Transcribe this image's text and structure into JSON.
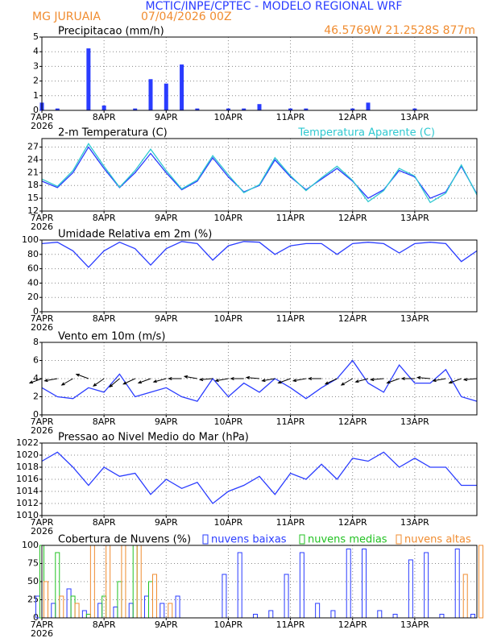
{
  "header": {
    "title": "MCTIC/INPE/CPTEC - MODELO REGIONAL WRF",
    "location": "MG JURUAIA",
    "run": "07/04/2026 00Z",
    "coords": "46.5769W 21.2528S 877m"
  },
  "chart_data": [
    {
      "type": "bar",
      "title": "Precipitacao (mm/h)",
      "color": "#2a3cff",
      "x": [
        0,
        6,
        12,
        18,
        24,
        30,
        36,
        42,
        48,
        54,
        60,
        66,
        72,
        78,
        84,
        90,
        96,
        102,
        108,
        114,
        120,
        126,
        132,
        138,
        144,
        150,
        156,
        162,
        168
      ],
      "values": [
        0.5,
        0.1,
        0,
        4.2,
        0.3,
        0,
        0.1,
        2.1,
        1.8,
        3.1,
        0.1,
        0,
        0.1,
        0.1,
        0.4,
        0,
        0.1,
        0.1,
        0,
        0,
        0.1,
        0.5,
        0,
        0,
        0.1,
        0,
        0,
        0,
        0
      ],
      "xlim": [
        0,
        168
      ],
      "ylim": [
        0,
        5
      ],
      "yticks": [
        0,
        1,
        2,
        3,
        4,
        5
      ],
      "xticks": [
        {
          "value": 0,
          "label": "7APR"
        },
        {
          "value": 24,
          "label": "8APR"
        },
        {
          "value": 48,
          "label": "9APR"
        },
        {
          "value": 72,
          "label": "10APR"
        },
        {
          "value": 96,
          "label": "11APR"
        },
        {
          "value": 120,
          "label": "12APR"
        },
        {
          "value": 144,
          "label": "13APR"
        }
      ],
      "x_year": "2026",
      "grid": true
    },
    {
      "type": "line",
      "title": "2-m Temperatura (C)",
      "x": [
        0,
        6,
        12,
        18,
        24,
        30,
        36,
        42,
        48,
        54,
        60,
        66,
        72,
        78,
        84,
        90,
        96,
        102,
        108,
        114,
        120,
        126,
        132,
        138,
        144,
        150,
        156,
        162,
        168
      ],
      "series": [
        {
          "color": "#2a3cff",
          "values": [
            19,
            17.5,
            21,
            27,
            22,
            17.5,
            21,
            25.5,
            21,
            17,
            19,
            24.5,
            20,
            16.5,
            18,
            24,
            20,
            17,
            19.5,
            22,
            19,
            15,
            17,
            21.5,
            20,
            15,
            16.5,
            22.5,
            16
          ]
        },
        {
          "name": "Temperatura Aparente (C)",
          "color": "#2ec8d0",
          "values": [
            19.5,
            17.8,
            21.5,
            27.8,
            22.5,
            17.6,
            21.5,
            26.5,
            21.5,
            17.2,
            19.3,
            25,
            20.5,
            16.3,
            18.2,
            24.5,
            20.3,
            16.8,
            19.8,
            22.5,
            19.2,
            14.2,
            16.8,
            22,
            20.2,
            14,
            16.2,
            22.8,
            15.8
          ]
        }
      ],
      "xlim": [
        0,
        168
      ],
      "ylim": [
        12,
        29
      ],
      "yticks": [
        12,
        15,
        18,
        21,
        24,
        27
      ],
      "xticks": [
        {
          "value": 0,
          "label": "7APR"
        },
        {
          "value": 24,
          "label": "8APR"
        },
        {
          "value": 48,
          "label": "9APR"
        },
        {
          "value": 72,
          "label": "10APR"
        },
        {
          "value": 96,
          "label": "11APR"
        },
        {
          "value": 120,
          "label": "12APR"
        },
        {
          "value": 144,
          "label": "13APR"
        }
      ],
      "x_year": "2026",
      "grid": true
    },
    {
      "type": "line",
      "title": "Umidade Relativa em 2m (%)",
      "x": [
        0,
        6,
        12,
        18,
        24,
        30,
        36,
        42,
        48,
        54,
        60,
        66,
        72,
        78,
        84,
        90,
        96,
        102,
        108,
        114,
        120,
        126,
        132,
        138,
        144,
        150,
        156,
        162,
        168
      ],
      "series": [
        {
          "color": "#2a3cff",
          "values": [
            95,
            97,
            85,
            62,
            85,
            97,
            88,
            65,
            88,
            98,
            95,
            72,
            92,
            98,
            97,
            80,
            92,
            95,
            95,
            80,
            95,
            97,
            95,
            82,
            95,
            97,
            95,
            70,
            85
          ]
        }
      ],
      "xlim": [
        0,
        168
      ],
      "ylim": [
        0,
        100
      ],
      "yticks": [
        0,
        20,
        40,
        60,
        80,
        100
      ],
      "xticks": [
        {
          "value": 0,
          "label": "7APR"
        },
        {
          "value": 24,
          "label": "8APR"
        },
        {
          "value": 48,
          "label": "9APR"
        },
        {
          "value": 72,
          "label": "10APR"
        },
        {
          "value": 96,
          "label": "11APR"
        },
        {
          "value": 120,
          "label": "12APR"
        },
        {
          "value": 144,
          "label": "13APR"
        }
      ],
      "x_year": "2026",
      "grid": true
    },
    {
      "type": "line",
      "title": "Vento em 10m (m/s)",
      "x": [
        0,
        6,
        12,
        18,
        24,
        30,
        36,
        42,
        48,
        54,
        60,
        66,
        72,
        78,
        84,
        90,
        96,
        102,
        108,
        114,
        120,
        126,
        132,
        138,
        144,
        150,
        156,
        162,
        168
      ],
      "series": [
        {
          "color": "#2a3cff",
          "values": [
            3,
            2,
            1.8,
            3,
            2.5,
            4.5,
            2,
            2.5,
            3,
            2,
            1.5,
            4,
            2,
            3.5,
            2.5,
            4,
            3,
            1.8,
            3,
            4,
            6,
            3.5,
            2.5,
            5.5,
            3.5,
            3.5,
            5,
            2,
            1.5
          ]
        }
      ],
      "wind_direction": [
        200,
        190,
        210,
        160,
        215,
        220,
        205,
        200,
        195,
        180,
        170,
        185,
        190,
        180,
        175,
        190,
        200,
        190,
        180,
        205,
        210,
        195,
        185,
        200,
        180,
        175,
        190,
        200,
        185
      ],
      "xlim": [
        0,
        168
      ],
      "ylim": [
        0,
        8
      ],
      "yticks": [
        0,
        2,
        4,
        6,
        8
      ],
      "xticks": [
        {
          "value": 0,
          "label": "7APR"
        },
        {
          "value": 24,
          "label": "8APR"
        },
        {
          "value": 48,
          "label": "9APR"
        },
        {
          "value": 72,
          "label": "10APR"
        },
        {
          "value": 96,
          "label": "11APR"
        },
        {
          "value": 120,
          "label": "12APR"
        },
        {
          "value": 144,
          "label": "13APR"
        }
      ],
      "x_year": "2026",
      "grid": true
    },
    {
      "type": "line",
      "title": "Pressao ao Nivel Medio do Mar (hPa)",
      "x": [
        0,
        6,
        12,
        18,
        24,
        30,
        36,
        42,
        48,
        54,
        60,
        66,
        72,
        78,
        84,
        90,
        96,
        102,
        108,
        114,
        120,
        126,
        132,
        138,
        144,
        150,
        156,
        162,
        168
      ],
      "series": [
        {
          "color": "#2a3cff",
          "values": [
            1019,
            1020.5,
            1018,
            1015,
            1018,
            1016.5,
            1017,
            1013.5,
            1016,
            1014.5,
            1015.5,
            1012,
            1014,
            1015,
            1016.5,
            1013.5,
            1017,
            1016,
            1018.5,
            1016,
            1019.5,
            1019,
            1020.5,
            1018,
            1019.5,
            1018,
            1018,
            1015,
            1015
          ]
        }
      ],
      "xlim": [
        0,
        168
      ],
      "ylim": [
        1010,
        1022
      ],
      "yticks": [
        1010,
        1012,
        1014,
        1016,
        1018,
        1020,
        1022
      ],
      "xticks": [
        {
          "value": 0,
          "label": "7APR"
        },
        {
          "value": 24,
          "label": "8APR"
        },
        {
          "value": 48,
          "label": "9APR"
        },
        {
          "value": 72,
          "label": "10APR"
        },
        {
          "value": 96,
          "label": "11APR"
        },
        {
          "value": 120,
          "label": "12APR"
        },
        {
          "value": 144,
          "label": "13APR"
        }
      ],
      "x_year": "2026",
      "grid": true
    },
    {
      "type": "bar",
      "title": "Cobertura de Nuvens (%)",
      "x": [
        0,
        6,
        12,
        18,
        24,
        30,
        36,
        42,
        48,
        54,
        60,
        66,
        72,
        78,
        84,
        90,
        96,
        102,
        108,
        114,
        120,
        126,
        132,
        138,
        144,
        150,
        156,
        162,
        168
      ],
      "series": [
        {
          "name": "nuvens baixas",
          "color": "#2a3cff",
          "values": [
            30,
            20,
            40,
            10,
            20,
            15,
            20,
            30,
            20,
            30,
            0,
            0,
            60,
            90,
            5,
            10,
            60,
            90,
            20,
            10,
            95,
            95,
            10,
            5,
            80,
            90,
            5,
            95,
            5
          ]
        },
        {
          "name": "nuvens medias",
          "color": "#22c222",
          "values": [
            100,
            90,
            30,
            5,
            30,
            50,
            100,
            50,
            0,
            0,
            0,
            0,
            0,
            0,
            0,
            0,
            0,
            0,
            0,
            0,
            0,
            0,
            0,
            0,
            0,
            0,
            0,
            0,
            0
          ]
        },
        {
          "name": "nuvens altas",
          "color": "#f08c30",
          "values": [
            50,
            30,
            20,
            100,
            100,
            100,
            100,
            60,
            20,
            0,
            0,
            0,
            0,
            0,
            0,
            0,
            0,
            0,
            0,
            0,
            0,
            0,
            0,
            0,
            0,
            0,
            0,
            60,
            100
          ]
        }
      ],
      "xlim": [
        0,
        168
      ],
      "ylim": [
        0,
        100
      ],
      "yticks": [
        0,
        25,
        50,
        75,
        100
      ],
      "xticks": [
        {
          "value": 0,
          "label": "7APR"
        },
        {
          "value": 24,
          "label": "8APR"
        },
        {
          "value": 48,
          "label": "9APR"
        },
        {
          "value": 72,
          "label": "10APR"
        },
        {
          "value": 96,
          "label": "11APR"
        },
        {
          "value": 120,
          "label": "12APR"
        },
        {
          "value": 144,
          "label": "13APR"
        }
      ],
      "x_year": "2026",
      "grid": true
    }
  ]
}
